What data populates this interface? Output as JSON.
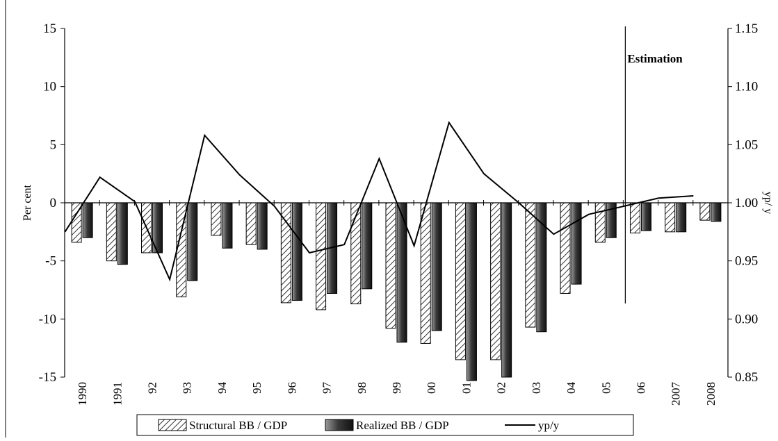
{
  "chart_data": {
    "type": "bar",
    "categories": [
      "1990",
      "1991",
      "92",
      "93",
      "94",
      "95",
      "96",
      "97",
      "98",
      "99",
      "00",
      "01",
      "02",
      "03",
      "04",
      "05",
      "06",
      "2007",
      "2008"
    ],
    "series": [
      {
        "name": "Structural BB / GDP",
        "kind": "bar",
        "axis": "left",
        "pattern": "hatched",
        "values": [
          -3.4,
          -5.0,
          -4.3,
          -8.1,
          -2.8,
          -3.6,
          -8.6,
          -9.2,
          -8.7,
          -10.8,
          -12.1,
          -13.5,
          -13.5,
          -10.7,
          -7.8,
          -3.4,
          -2.6,
          -2.5,
          -1.5
        ]
      },
      {
        "name": "Realized BB / GDP",
        "kind": "bar",
        "axis": "left",
        "pattern": "dark-gradient",
        "values": [
          -3.0,
          -5.3,
          -4.3,
          -6.7,
          -3.9,
          -4.0,
          -8.4,
          -7.8,
          -7.4,
          -12.0,
          -11.0,
          -15.3,
          -15.0,
          -11.1,
          -7.0,
          -3.0,
          -2.4,
          -2.5,
          -1.6
        ]
      },
      {
        "name": "yp/y",
        "kind": "line",
        "axis": "right",
        "values": [
          0.975,
          1.022,
          1.001,
          0.934,
          1.058,
          1.024,
          0.997,
          0.957,
          0.964,
          1.038,
          0.963,
          1.069,
          1.025,
          1.0,
          0.973,
          0.99,
          0.997,
          1.004,
          1.006
        ]
      }
    ],
    "y_left": {
      "label": "Per cent",
      "range": [
        -15,
        15
      ],
      "ticks": [
        "15",
        "10",
        "5",
        "0",
        "-5",
        "-10",
        "-15"
      ]
    },
    "y_right": {
      "label": "yp/ y",
      "range": [
        0.85,
        1.15
      ],
      "ticks": [
        "1.15",
        "1.10",
        "1.05",
        "1.00",
        "0.95",
        "0.90",
        "0.85"
      ]
    },
    "annotation": {
      "text": "Estimation",
      "after_category": "05"
    },
    "grid": false,
    "legend_position": "bottom"
  },
  "colors": {
    "line": "#000000",
    "hatch": "#000000",
    "dark_bar_light": "#8c8c8c",
    "dark_bar_dark": "#1a1a1a"
  }
}
